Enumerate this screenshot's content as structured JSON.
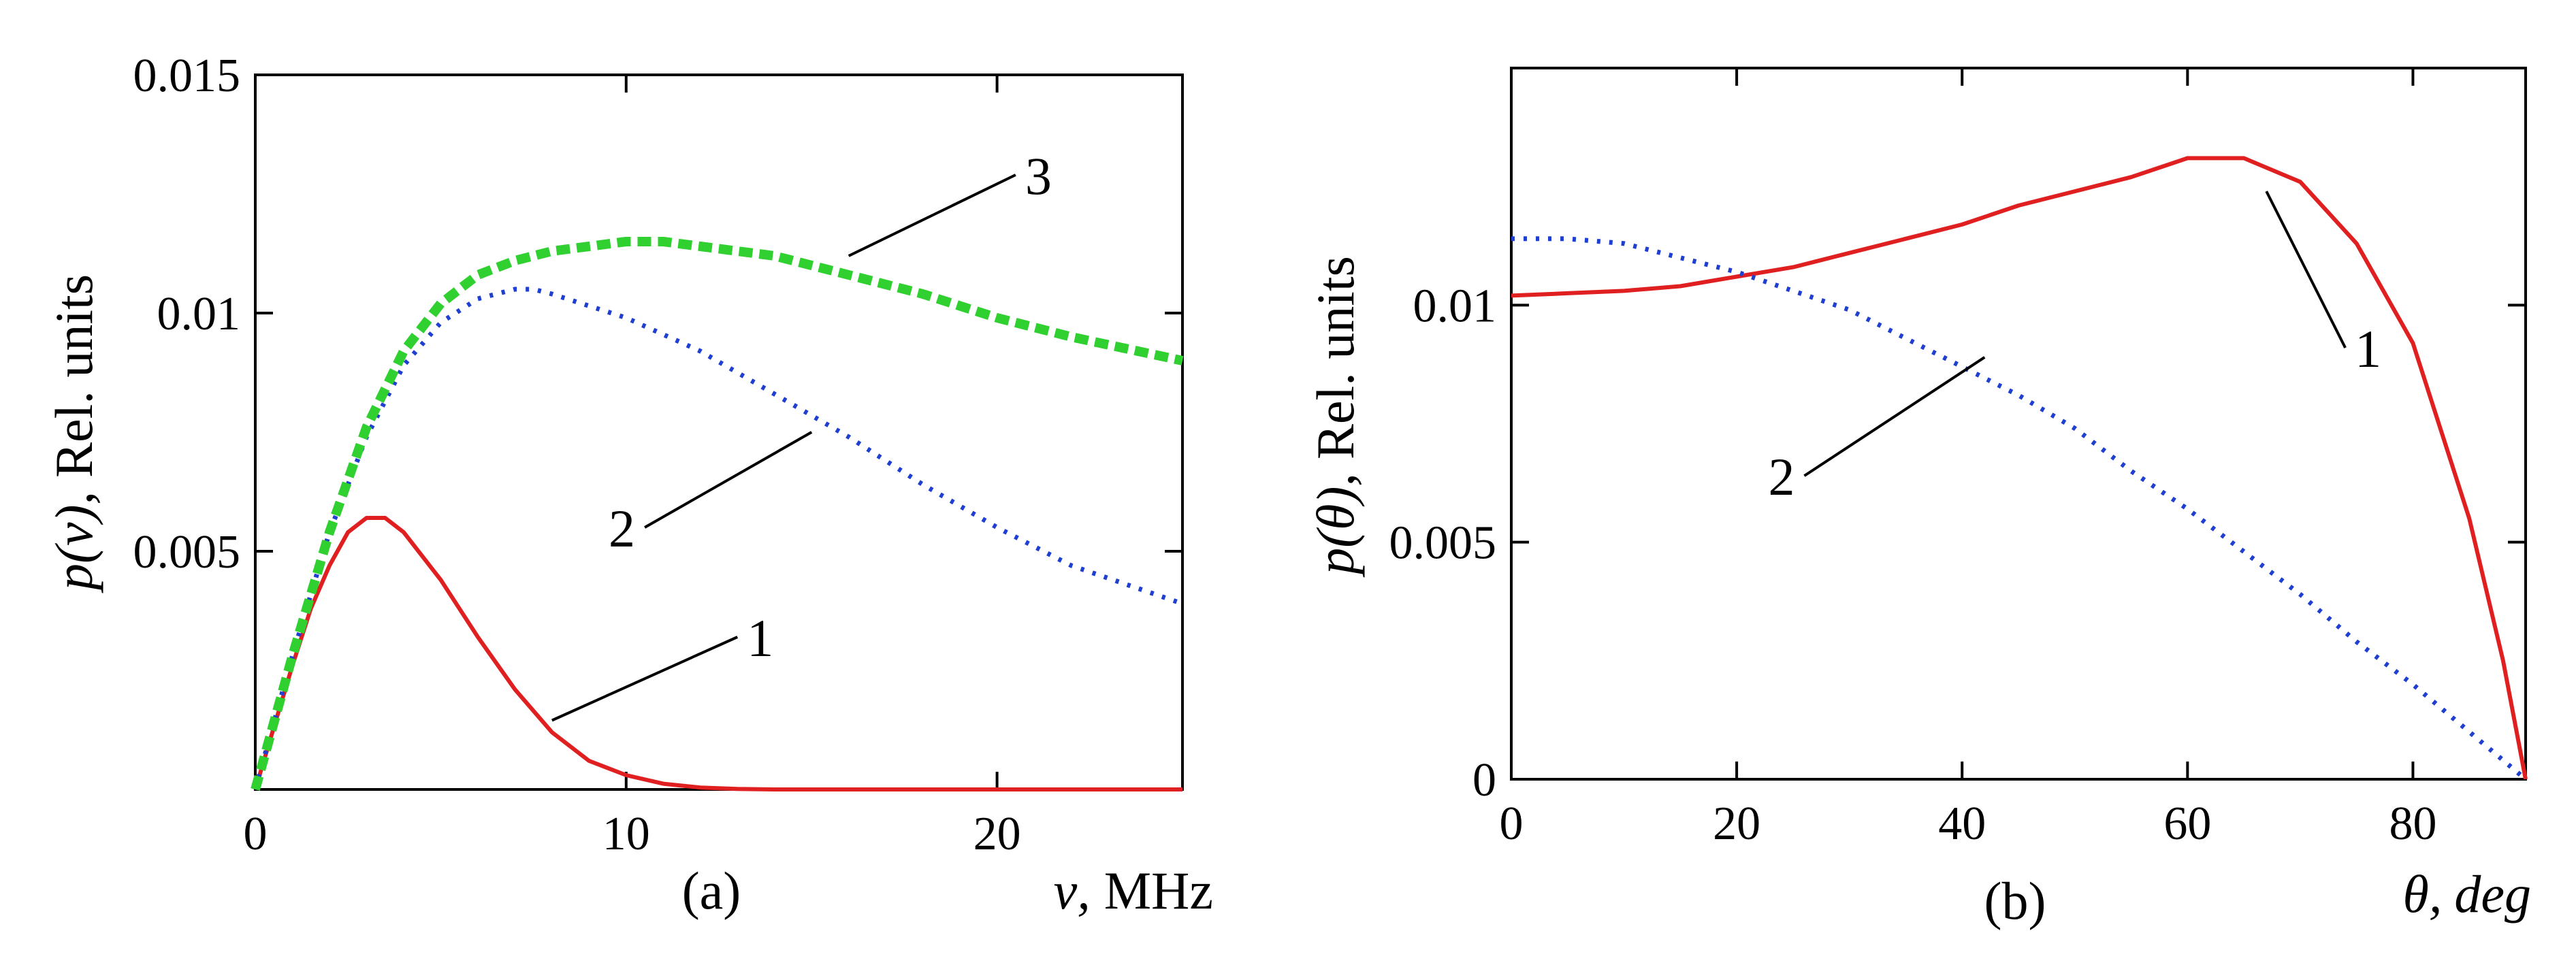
{
  "chart_data": [
    {
      "type": "line",
      "panel": "(a)",
      "xlabel_var": "ν",
      "xlabel_unit": "MHz",
      "ylabel_func": "p(ν),",
      "ylabel_unit": "Rel. units",
      "xlim": [
        0,
        25
      ],
      "ylim": [
        0,
        0.015
      ],
      "x_ticks": [
        0,
        10,
        20
      ],
      "x_tick_labels": [
        "0",
        "10",
        "20"
      ],
      "y_ticks": [
        0.005,
        0.01,
        0.015
      ],
      "y_tick_labels": [
        "0.005",
        "0.01",
        "0.015"
      ],
      "grid": false,
      "series": [
        {
          "name": "1",
          "color": "#e02020",
          "style": "solid",
          "x": [
            0,
            0.5,
            1,
            1.5,
            2,
            2.5,
            3,
            3.5,
            4,
            5,
            6,
            7,
            8,
            9,
            10,
            11,
            12,
            13,
            14,
            16,
            18,
            20,
            22,
            25
          ],
          "y": [
            0,
            0.0013,
            0.0026,
            0.0038,
            0.0047,
            0.0054,
            0.0057,
            0.0057,
            0.0054,
            0.0044,
            0.0032,
            0.0021,
            0.0012,
            0.0006,
            0.0003,
            0.00012,
            4e-05,
            1e-05,
            0,
            0,
            0,
            0,
            0,
            0
          ],
          "label_text": "1",
          "label_x": 13,
          "label_y": 0.0032,
          "leader_to_x": 8,
          "leader_to_y": 0.00145
        },
        {
          "name": "2",
          "color": "#1f3fd0",
          "style": "dotted",
          "x": [
            0,
            1,
            2,
            3,
            4,
            5,
            6,
            7,
            7.5,
            8,
            10,
            12,
            14,
            16,
            18,
            20,
            22,
            25
          ],
          "y": [
            0,
            0.0028,
            0.0054,
            0.0074,
            0.0089,
            0.0098,
            0.0103,
            0.0105,
            0.0105,
            0.0104,
            0.0099,
            0.0092,
            0.0083,
            0.0074,
            0.0064,
            0.0055,
            0.0047,
            0.0039
          ],
          "label_text": "2",
          "label_x": 10.5,
          "label_y": 0.0055,
          "leader_to_x": 15,
          "leader_to_y": 0.0075
        },
        {
          "name": "3",
          "color": "#30d030",
          "style": "dashed",
          "x": [
            0,
            1,
            2,
            3,
            4,
            5,
            6,
            7,
            8,
            9,
            10,
            11,
            12,
            13,
            14,
            16,
            18,
            20,
            22,
            25
          ],
          "y": [
            0,
            0.0028,
            0.0054,
            0.0076,
            0.0092,
            0.0102,
            0.0108,
            0.0111,
            0.0113,
            0.0114,
            0.0115,
            0.0115,
            0.0114,
            0.0113,
            0.0112,
            0.0108,
            0.0104,
            0.0099,
            0.0095,
            0.009
          ],
          "label_text": "3",
          "label_x": 20.5,
          "label_y": 0.0129,
          "leader_to_x": 16,
          "leader_to_y": 0.0112
        }
      ]
    },
    {
      "type": "line",
      "panel": "(b)",
      "xlabel_var": "θ,",
      "xlabel_unit": "deg",
      "ylabel_func": "p(θ),",
      "ylabel_unit": "Rel. units",
      "xlim": [
        0,
        90
      ],
      "ylim": [
        0,
        0.015
      ],
      "x_ticks": [
        0,
        20,
        40,
        60,
        80
      ],
      "x_tick_labels": [
        "0",
        "20",
        "40",
        "60",
        "80"
      ],
      "y_ticks": [
        0,
        0.005,
        0.01
      ],
      "y_tick_labels": [
        "0",
        "0.005",
        "0.01"
      ],
      "grid": false,
      "series": [
        {
          "name": "1",
          "color": "#e02020",
          "style": "solid",
          "x": [
            0,
            5,
            10,
            15,
            20,
            25,
            30,
            35,
            40,
            45,
            50,
            55,
            60,
            65,
            70,
            75,
            80,
            85,
            88,
            90
          ],
          "y": [
            0.0102,
            0.01025,
            0.0103,
            0.0104,
            0.0106,
            0.0108,
            0.0111,
            0.0114,
            0.0117,
            0.0121,
            0.0124,
            0.0127,
            0.0131,
            0.0131,
            0.0126,
            0.0113,
            0.0092,
            0.0055,
            0.0025,
            0
          ],
          "label_text": "1",
          "label_x": 74,
          "label_y": 0.0091,
          "leader_to_x": 67,
          "leader_to_y": 0.0124
        },
        {
          "name": "2",
          "color": "#1f3fd0",
          "style": "dotted",
          "x": [
            0,
            5,
            10,
            15,
            20,
            25,
            30,
            35,
            40,
            45,
            50,
            55,
            60,
            65,
            70,
            75,
            80,
            85,
            90
          ],
          "y": [
            0.0114,
            0.0114,
            0.0113,
            0.011,
            0.0107,
            0.0103,
            0.0099,
            0.0093,
            0.0087,
            0.0081,
            0.0074,
            0.0065,
            0.0057,
            0.0048,
            0.0039,
            0.0029,
            0.002,
            0.001,
            0
          ],
          "label_text": "2",
          "label_x": 26,
          "label_y": 0.0064,
          "leader_to_x": 42,
          "leader_to_y": 0.0089
        }
      ]
    }
  ]
}
